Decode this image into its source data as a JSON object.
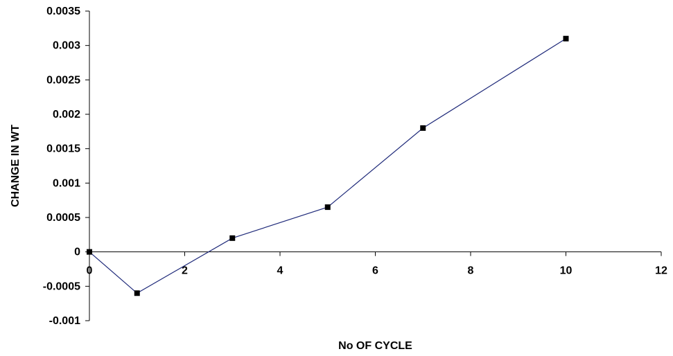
{
  "chart_data": {
    "type": "line",
    "title": "",
    "xlabel": "No OF CYCLE",
    "ylabel": "CHANGE IN WT",
    "xlim": [
      0,
      12
    ],
    "ylim": [
      -0.001,
      0.0035
    ],
    "x_ticks": [
      "0",
      "2",
      "4",
      "6",
      "8",
      "10",
      "12"
    ],
    "y_ticks": [
      "-0.001",
      "-0.0005",
      "0",
      "0.0005",
      "0.001",
      "0.0015",
      "0.002",
      "0.0025",
      "0.003",
      "0.0035"
    ],
    "grid": false,
    "legend": false,
    "series": [
      {
        "x": [
          0,
          1,
          3,
          5,
          7,
          10
        ],
        "y": [
          0,
          -0.0006,
          0.0002,
          0.00065,
          0.0018,
          0.0031
        ],
        "color": "#1f2a7a",
        "marker": "square",
        "marker_color": "#000000"
      }
    ]
  }
}
